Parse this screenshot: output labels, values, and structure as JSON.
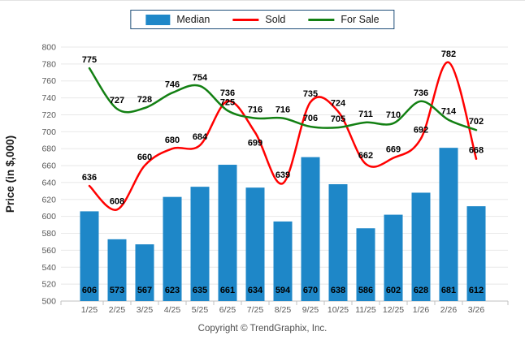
{
  "legend": {
    "border_color": "#1F4E79",
    "items": [
      {
        "label": "Median",
        "swatch": "bar",
        "color": "#1E87C8"
      },
      {
        "label": "Sold",
        "swatch": "line",
        "color": "#FF0000"
      },
      {
        "label": "For Sale",
        "swatch": "line",
        "color": "#138013"
      }
    ]
  },
  "footer": {
    "copyright": "Copyright © TrendGraphix, Inc."
  },
  "chart_data": {
    "type": "bar+line",
    "categories": [
      "1/25",
      "2/25",
      "3/25",
      "4/25",
      "5/25",
      "6/25",
      "7/25",
      "8/25",
      "9/25",
      "10/25",
      "11/25",
      "12/25",
      "1/26",
      "2/26",
      "3/26"
    ],
    "series": [
      {
        "name": "Median",
        "type": "bar",
        "color": "#1E87C8",
        "values": [
          606,
          573,
          567,
          623,
          635,
          661,
          634,
          594,
          670,
          638,
          586,
          602,
          628,
          681,
          612
        ]
      },
      {
        "name": "Sold",
        "type": "line",
        "color": "#FF0000",
        "values": [
          636,
          608,
          660,
          680,
          684,
          736,
          699,
          639,
          735,
          724,
          662,
          669,
          692,
          782,
          668
        ]
      },
      {
        "name": "For Sale",
        "type": "line",
        "color": "#138013",
        "values": [
          775,
          727,
          728,
          746,
          754,
          725,
          716,
          716,
          706,
          705,
          711,
          710,
          736,
          714,
          702
        ]
      }
    ],
    "title": "",
    "xlabel": "",
    "ylabel": "Price (in $,000)",
    "ylim": [
      500,
      800
    ],
    "ytick_step": 20,
    "grid": "horizontal",
    "legend_position": "top-center",
    "data_labels": true,
    "label_adjustments": {
      "Sold": {
        "6": "below"
      }
    },
    "styles": {
      "gridline": "#E8E8E8",
      "axis": "#C0C0C0",
      "tick_text": "#595959",
      "data_label": "#000000",
      "bar_value_label": "#000000",
      "axis_title": "#1A1A1A"
    }
  }
}
